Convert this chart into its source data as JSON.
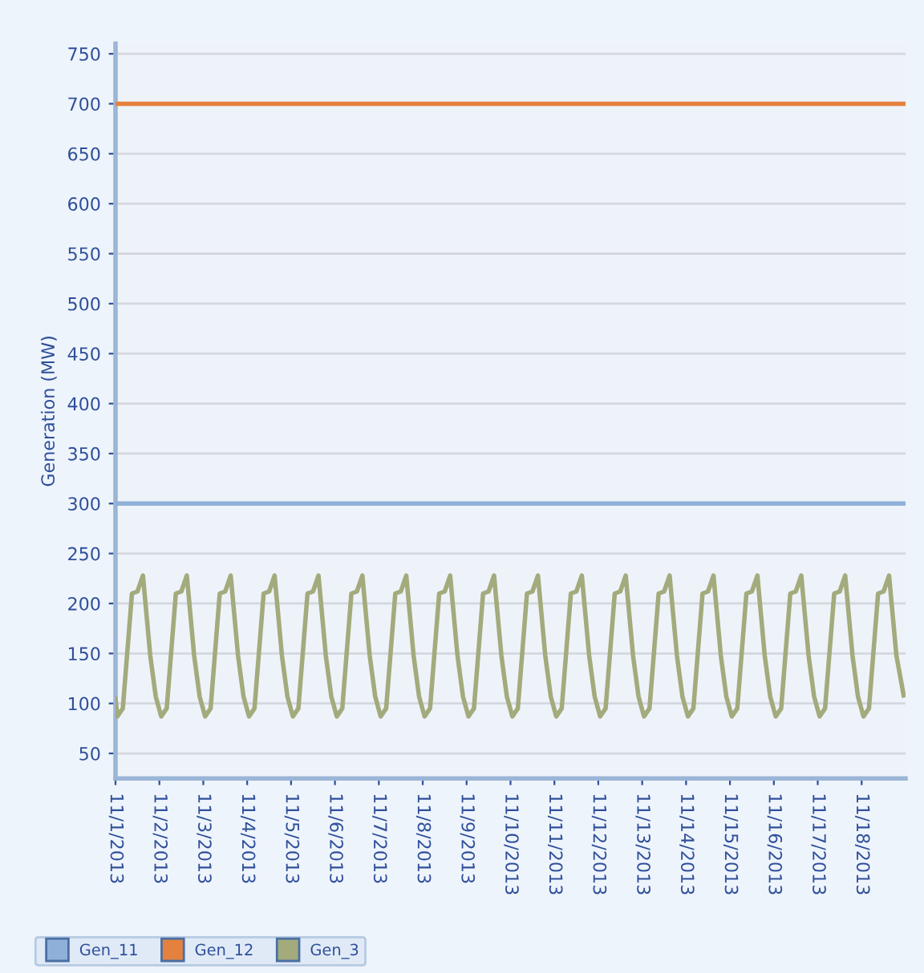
{
  "chart_data": {
    "type": "line",
    "ylabel": "Generation (MW)",
    "xlim": [
      "2013-11-01T00:00",
      "2013-11-19T00:00"
    ],
    "xticks": [
      {
        "value": "2013-11-01",
        "label": "11/1/2013"
      },
      {
        "value": "2013-11-02",
        "label": "11/2/2013"
      },
      {
        "value": "2013-11-03",
        "label": "11/3/2013"
      },
      {
        "value": "2013-11-04",
        "label": "11/4/2013"
      },
      {
        "value": "2013-11-05",
        "label": "11/5/2013"
      },
      {
        "value": "2013-11-06",
        "label": "11/6/2013"
      },
      {
        "value": "2013-11-07",
        "label": "11/7/2013"
      },
      {
        "value": "2013-11-08",
        "label": "11/8/2013"
      },
      {
        "value": "2013-11-09",
        "label": "11/9/2013"
      },
      {
        "value": "2013-11-10",
        "label": "11/10/2013"
      },
      {
        "value": "2013-11-11",
        "label": "11/11/2013"
      },
      {
        "value": "2013-11-12",
        "label": "11/12/2013"
      },
      {
        "value": "2013-11-13",
        "label": "11/13/2013"
      },
      {
        "value": "2013-11-14",
        "label": "11/14/2013"
      },
      {
        "value": "2013-11-15",
        "label": "11/15/2013"
      },
      {
        "value": "2013-11-16",
        "label": "11/16/2013"
      },
      {
        "value": "2013-11-17",
        "label": "11/17/2013"
      },
      {
        "value": "2013-11-18",
        "label": "11/18/2013"
      }
    ],
    "ylim": [
      25,
      760
    ],
    "yticks": [
      50,
      100,
      150,
      200,
      250,
      300,
      350,
      400,
      450,
      500,
      550,
      600,
      650,
      700,
      750
    ],
    "grid": "y",
    "legend": "bottom",
    "marker": "none",
    "line_style": "solid",
    "series": [
      {
        "name": "Gen_11",
        "color": "#8fb0d8",
        "x": [
          "2013-11-01T00:00",
          "2013-11-19T00:00"
        ],
        "values": [
          300,
          300
        ]
      },
      {
        "name": "Gen_12",
        "color": "#e5813e",
        "x": [
          "2013-11-01T00:00",
          "2013-11-19T00:00"
        ],
        "values": [
          700,
          700
        ]
      },
      {
        "name": "Gen_3",
        "color": "#a3aa7c",
        "x": [
          "2013-11-01T00:00",
          "2013-11-01T01:00",
          "2013-11-01T04:00",
          "2013-11-01T09:00",
          "2013-11-01T12:00",
          "2013-11-01T15:00",
          "2013-11-01T16:00",
          "2013-11-01T19:00",
          "2013-11-01T22:00",
          "2013-11-02T01:00",
          "2013-11-02T04:00",
          "2013-11-02T09:00",
          "2013-11-02T12:00",
          "2013-11-02T15:00",
          "2013-11-02T16:00",
          "2013-11-02T19:00",
          "2013-11-02T22:00",
          "2013-11-03T01:00",
          "2013-11-03T04:00",
          "2013-11-03T09:00",
          "2013-11-03T12:00",
          "2013-11-03T15:00",
          "2013-11-03T16:00",
          "2013-11-03T19:00",
          "2013-11-03T22:00",
          "2013-11-04T01:00",
          "2013-11-04T04:00",
          "2013-11-04T09:00",
          "2013-11-04T12:00",
          "2013-11-04T15:00",
          "2013-11-04T16:00",
          "2013-11-04T19:00",
          "2013-11-04T22:00",
          "2013-11-05T01:00",
          "2013-11-05T04:00",
          "2013-11-05T09:00",
          "2013-11-05T12:00",
          "2013-11-05T15:00",
          "2013-11-05T16:00",
          "2013-11-05T19:00",
          "2013-11-05T22:00",
          "2013-11-06T01:00",
          "2013-11-06T04:00",
          "2013-11-06T09:00",
          "2013-11-06T12:00",
          "2013-11-06T15:00",
          "2013-11-06T16:00",
          "2013-11-06T19:00",
          "2013-11-06T22:00",
          "2013-11-07T01:00",
          "2013-11-07T04:00",
          "2013-11-07T09:00",
          "2013-11-07T12:00",
          "2013-11-07T15:00",
          "2013-11-07T16:00",
          "2013-11-07T19:00",
          "2013-11-07T22:00",
          "2013-11-08T01:00",
          "2013-11-08T04:00",
          "2013-11-08T09:00",
          "2013-11-08T12:00",
          "2013-11-08T15:00",
          "2013-11-08T16:00",
          "2013-11-08T19:00",
          "2013-11-08T22:00",
          "2013-11-09T01:00",
          "2013-11-09T04:00",
          "2013-11-09T09:00",
          "2013-11-09T12:00",
          "2013-11-09T15:00",
          "2013-11-09T16:00",
          "2013-11-09T19:00",
          "2013-11-09T22:00",
          "2013-11-10T01:00",
          "2013-11-10T04:00",
          "2013-11-10T09:00",
          "2013-11-10T12:00",
          "2013-11-10T15:00",
          "2013-11-10T16:00",
          "2013-11-10T19:00",
          "2013-11-10T22:00",
          "2013-11-11T01:00",
          "2013-11-11T04:00",
          "2013-11-11T09:00",
          "2013-11-11T12:00",
          "2013-11-11T15:00",
          "2013-11-11T16:00",
          "2013-11-11T19:00",
          "2013-11-11T22:00",
          "2013-11-12T01:00",
          "2013-11-12T04:00",
          "2013-11-12T09:00",
          "2013-11-12T12:00",
          "2013-11-12T15:00",
          "2013-11-12T16:00",
          "2013-11-12T19:00",
          "2013-11-12T22:00",
          "2013-11-13T01:00",
          "2013-11-13T04:00",
          "2013-11-13T09:00",
          "2013-11-13T12:00",
          "2013-11-13T15:00",
          "2013-11-13T16:00",
          "2013-11-13T19:00",
          "2013-11-13T22:00",
          "2013-11-14T01:00",
          "2013-11-14T04:00",
          "2013-11-14T09:00",
          "2013-11-14T12:00",
          "2013-11-14T15:00",
          "2013-11-14T16:00",
          "2013-11-14T19:00",
          "2013-11-14T22:00",
          "2013-11-15T01:00",
          "2013-11-15T04:00",
          "2013-11-15T09:00",
          "2013-11-15T12:00",
          "2013-11-15T15:00",
          "2013-11-15T16:00",
          "2013-11-15T19:00",
          "2013-11-15T22:00",
          "2013-11-16T01:00",
          "2013-11-16T04:00",
          "2013-11-16T09:00",
          "2013-11-16T12:00",
          "2013-11-16T15:00",
          "2013-11-16T16:00",
          "2013-11-16T19:00",
          "2013-11-16T22:00",
          "2013-11-17T01:00",
          "2013-11-17T04:00",
          "2013-11-17T09:00",
          "2013-11-17T12:00",
          "2013-11-17T15:00",
          "2013-11-17T16:00",
          "2013-11-17T19:00",
          "2013-11-17T22:00",
          "2013-11-18T01:00",
          "2013-11-18T04:00",
          "2013-11-18T09:00",
          "2013-11-18T12:00",
          "2013-11-18T15:00",
          "2013-11-18T16:00",
          "2013-11-18T19:00",
          "2013-11-18T23:00"
        ],
        "values": [
          105,
          87,
          95,
          210,
          212,
          228,
          208,
          148,
          107,
          87,
          95,
          210,
          212,
          228,
          208,
          148,
          107,
          87,
          95,
          210,
          212,
          228,
          208,
          148,
          107,
          87,
          95,
          210,
          212,
          228,
          208,
          148,
          107,
          87,
          95,
          210,
          212,
          228,
          208,
          148,
          107,
          87,
          95,
          210,
          212,
          228,
          208,
          148,
          107,
          87,
          95,
          210,
          212,
          228,
          208,
          148,
          107,
          87,
          95,
          210,
          212,
          228,
          208,
          148,
          107,
          87,
          95,
          210,
          212,
          228,
          208,
          148,
          107,
          87,
          95,
          210,
          212,
          228,
          208,
          148,
          107,
          87,
          95,
          210,
          212,
          228,
          208,
          148,
          107,
          87,
          95,
          210,
          212,
          228,
          208,
          148,
          107,
          87,
          95,
          210,
          212,
          228,
          208,
          148,
          107,
          87,
          95,
          210,
          212,
          228,
          208,
          148,
          107,
          87,
          95,
          210,
          212,
          228,
          208,
          148,
          107,
          87,
          95,
          210,
          212,
          228,
          208,
          148,
          107,
          87,
          95,
          210,
          212,
          228,
          208,
          148,
          107,
          87,
          95,
          210,
          212,
          228,
          208,
          148,
          108
        ]
      }
    ]
  }
}
